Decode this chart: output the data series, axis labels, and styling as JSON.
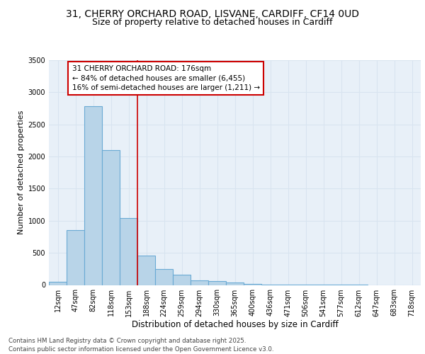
{
  "title_line1": "31, CHERRY ORCHARD ROAD, LISVANE, CARDIFF, CF14 0UD",
  "title_line2": "Size of property relative to detached houses in Cardiff",
  "xlabel": "Distribution of detached houses by size in Cardiff",
  "ylabel": "Number of detached properties",
  "bar_color": "#b8d4e8",
  "bar_edge_color": "#6aaad4",
  "background_color": "#e8f0f8",
  "grid_color": "#d8e4f0",
  "categories": [
    "12sqm",
    "47sqm",
    "82sqm",
    "118sqm",
    "153sqm",
    "188sqm",
    "224sqm",
    "259sqm",
    "294sqm",
    "330sqm",
    "365sqm",
    "400sqm",
    "436sqm",
    "471sqm",
    "506sqm",
    "541sqm",
    "577sqm",
    "612sqm",
    "647sqm",
    "683sqm",
    "718sqm"
  ],
  "values": [
    55,
    850,
    2780,
    2100,
    1040,
    460,
    250,
    155,
    70,
    60,
    35,
    20,
    10,
    5,
    3,
    2,
    1,
    1,
    0,
    0,
    0
  ],
  "ylim": [
    0,
    3500
  ],
  "yticks": [
    0,
    500,
    1000,
    1500,
    2000,
    2500,
    3000,
    3500
  ],
  "annotation_text": "31 CHERRY ORCHARD ROAD: 176sqm\n← 84% of detached houses are smaller (6,455)\n16% of semi-detached houses are larger (1,211) →",
  "vline_x": 4.5,
  "annotation_box_color": "#ffffff",
  "annotation_box_edge": "#cc0000",
  "vline_color": "#cc0000",
  "footer_text": "Contains HM Land Registry data © Crown copyright and database right 2025.\nContains public sector information licensed under the Open Government Licence v3.0.",
  "title_fontsize": 10,
  "subtitle_fontsize": 9,
  "tick_fontsize": 7,
  "annotation_fontsize": 7.5,
  "ylabel_fontsize": 8,
  "xlabel_fontsize": 8.5
}
